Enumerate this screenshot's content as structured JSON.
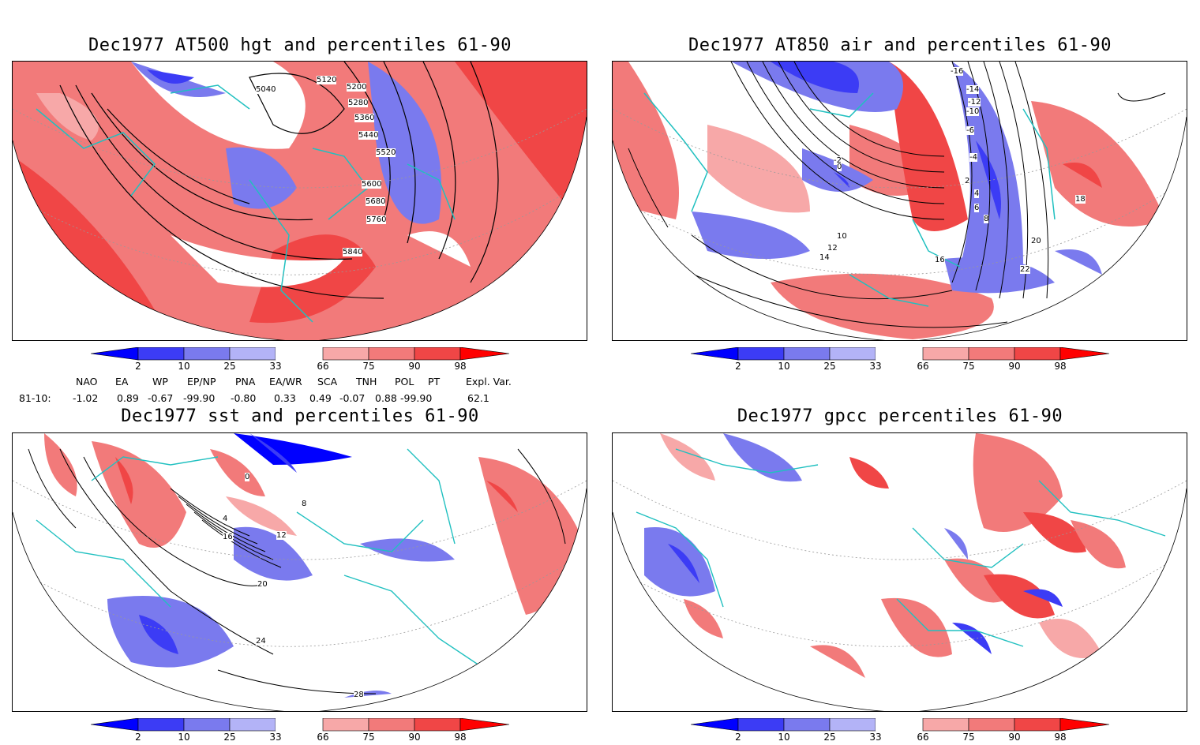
{
  "panels": [
    {
      "title": "Dec1977 AT500 hgt and percentiles 61-90",
      "contour_labels": [
        "5040",
        "5120",
        "5200",
        "5280",
        "5360",
        "5440",
        "5520",
        "5600",
        "5680",
        "5760",
        "5840"
      ]
    },
    {
      "title": "Dec1977 AT850 air and percentiles 61-90",
      "contour_labels": [
        "-16",
        "-14",
        "-12",
        "-10",
        "-6",
        "-4",
        "-2",
        "0",
        "2",
        "4",
        "6",
        "8",
        "10",
        "12",
        "14",
        "16",
        "18",
        "20",
        "22"
      ]
    },
    {
      "title": "Dec1977 sst and percentiles 61-90",
      "contour_labels": [
        "0",
        "4",
        "8",
        "12",
        "16",
        "20",
        "24",
        "28"
      ]
    },
    {
      "title": "Dec1977 gpcc percentiles 61-90",
      "contour_labels": []
    }
  ],
  "colorbar": {
    "ticks": [
      "2",
      "10",
      "25",
      "33",
      "66",
      "75",
      "90",
      "98"
    ],
    "colors": {
      "blue_dark": "#0000ff",
      "blue_mid": "#3c3cf5",
      "blue_light": "#7a7aee",
      "blue_pale": "#b3b3f7",
      "white": "#ffffff",
      "red_pale": "#f7a8a8",
      "red_light": "#f27a7a",
      "red_mid": "#f04646",
      "red_dark": "#ff0000"
    }
  },
  "indices": {
    "headers": [
      "NAO",
      "EA",
      "WP",
      "EP/NP",
      "PNA",
      "EA/WR",
      "SCA",
      "TNH",
      "POL",
      "PT",
      "Expl. Var."
    ],
    "row_label": "81-10:",
    "values": [
      "-1.02",
      "0.89",
      "-0.67",
      "-99.90",
      "-0.80",
      "0.33",
      "0.49",
      "-0.07",
      "0.88",
      "-99.90",
      "62.1"
    ]
  },
  "map_colors": {
    "coastline": "#20c0c0",
    "grid": "#999999",
    "contour": "#000000"
  }
}
